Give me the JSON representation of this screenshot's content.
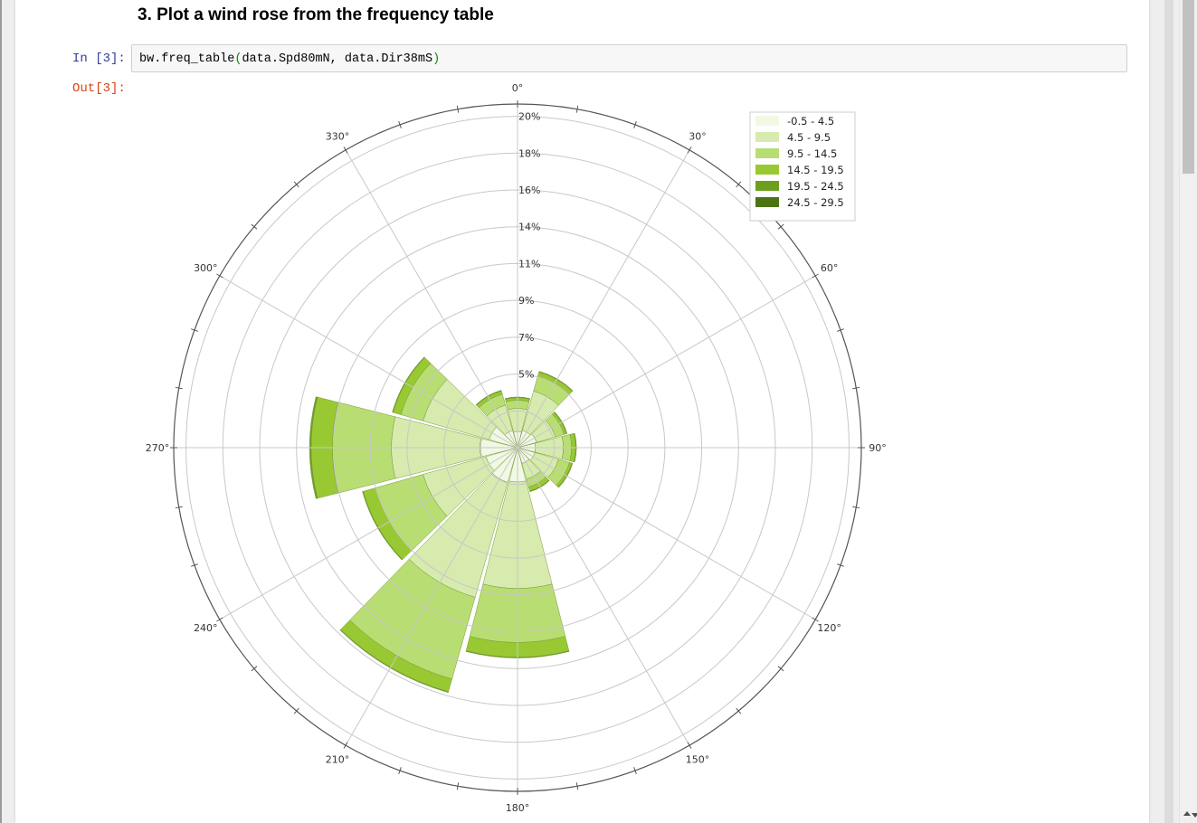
{
  "heading": "3. Plot a wind rose from the frequency table",
  "cell": {
    "in_prompt": "In [3]:",
    "out_prompt": "Out[3]:",
    "code_call": "bw.freq_table",
    "code_open": "(",
    "code_args": "data.Spd80mN, data.Dir38mS",
    "code_close": ")"
  },
  "chart_data": {
    "type": "polar-bar",
    "title": "",
    "angle_labels": [
      "0°",
      "30°",
      "60°",
      "90°",
      "120°",
      "150°",
      "180°",
      "210°",
      "240°",
      "270°",
      "300°",
      "330°"
    ],
    "radial_ticks": [
      {
        "value": 2.25,
        "label": ""
      },
      {
        "value": 4.5,
        "label": "5%"
      },
      {
        "value": 6.75,
        "label": "7%"
      },
      {
        "value": 9.0,
        "label": "9%"
      },
      {
        "value": 11.25,
        "label": "11%"
      },
      {
        "value": 13.5,
        "label": "14%"
      },
      {
        "value": 15.75,
        "label": "16%"
      },
      {
        "value": 18.0,
        "label": "18%"
      },
      {
        "value": 20.25,
        "label": "20%"
      }
    ],
    "rmax": 21.0,
    "legend_position": "top-right",
    "speed_bins": [
      {
        "label": "-0.5 - 4.5",
        "color": "#f1f8e4"
      },
      {
        "label": "4.5 - 9.5",
        "color": "#d6ebad"
      },
      {
        "label": "9.5 - 14.5",
        "color": "#b8dd72"
      },
      {
        "label": "14.5 - 19.5",
        "color": "#99c932"
      },
      {
        "label": "19.5 - 24.5",
        "color": "#6d9f1e"
      },
      {
        "label": "24.5 - 29.5",
        "color": "#4d7414"
      }
    ],
    "sectors": [
      {
        "direction": 0,
        "cumulative": [
          1.0,
          2.4,
          2.9,
          3.05,
          3.1,
          3.1
        ]
      },
      {
        "direction": 30,
        "cumulative": [
          1.1,
          3.6,
          4.5,
          4.8,
          4.85,
          4.85
        ]
      },
      {
        "direction": 60,
        "cumulative": [
          1.2,
          2.4,
          2.95,
          3.1,
          3.15,
          3.15
        ]
      },
      {
        "direction": 90,
        "cumulative": [
          1.1,
          2.8,
          3.3,
          3.55,
          3.6,
          3.6
        ]
      },
      {
        "direction": 120,
        "cumulative": [
          1.1,
          2.6,
          3.3,
          3.45,
          3.5,
          3.5
        ]
      },
      {
        "direction": 150,
        "cumulative": [
          1.0,
          2.0,
          2.5,
          2.75,
          2.8,
          2.8
        ]
      },
      {
        "direction": 180,
        "cumulative": [
          2.1,
          8.6,
          11.9,
          12.8,
          12.85,
          12.85
        ]
      },
      {
        "direction": 210,
        "cumulative": [
          2.2,
          9.5,
          14.7,
          15.5,
          15.55,
          15.55
        ]
      },
      {
        "direction": 240,
        "cumulative": [
          2.0,
          6.0,
          9.0,
          9.8,
          9.85,
          9.85
        ]
      },
      {
        "direction": 270,
        "cumulative": [
          2.3,
          7.7,
          11.3,
          12.6,
          12.7,
          12.7
        ]
      },
      {
        "direction": 300,
        "cumulative": [
          1.8,
          6.0,
          7.4,
          7.9,
          7.95,
          7.95
        ]
      },
      {
        "direction": 330,
        "cumulative": [
          1.1,
          2.7,
          3.4,
          3.6,
          3.65,
          3.65
        ]
      }
    ]
  }
}
